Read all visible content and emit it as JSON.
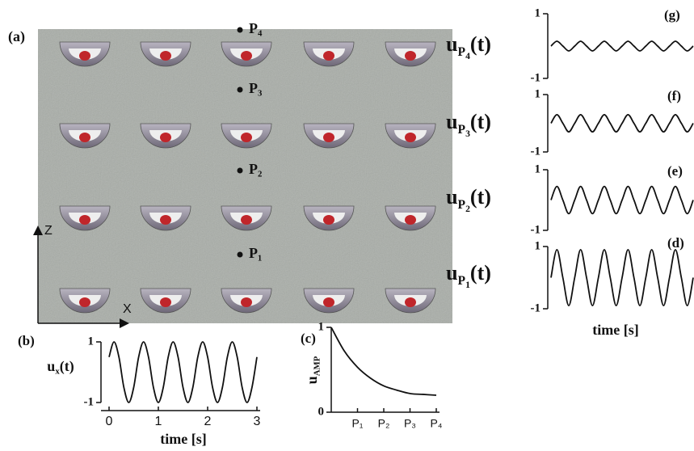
{
  "panel_a": {
    "label": "(a)",
    "points": [
      "P₄",
      "P₃",
      "P₂",
      "P₁"
    ],
    "axes": [
      "Z",
      "X"
    ]
  },
  "chart_data": [
    {
      "type": "line",
      "panel": "(b)",
      "ylabel": {
        "base": "u",
        "sub": "x",
        "tail": "(t)"
      },
      "xlabel": "time [s]",
      "x": [
        0,
        0.1,
        0.2,
        0.3,
        0.4,
        0.5,
        0.6,
        0.7,
        0.8,
        0.9,
        1,
        1.1,
        1.2,
        1.3,
        1.4,
        1.5,
        1.6,
        1.7,
        1.8,
        1.9,
        2,
        2.1,
        2.2,
        2.3,
        2.4,
        2.5,
        2.6,
        2.7,
        2.8,
        2.9,
        3
      ],
      "values": [
        0.5,
        1,
        0.5,
        -0.5,
        -1,
        -0.5,
        0.5,
        1,
        0.5,
        -0.5,
        -1,
        -0.5,
        0.5,
        1,
        0.5,
        -0.5,
        -1,
        -0.5,
        0.5,
        1,
        0.5,
        -0.5,
        -1,
        -0.5,
        0.5,
        1,
        0.5,
        -0.5,
        -1,
        -0.5,
        0.5
      ],
      "color": "#111111",
      "xlim": [
        0,
        3
      ],
      "xticks": [
        0,
        1,
        2,
        3
      ],
      "ylim": [
        -1,
        1
      ],
      "yticks": [
        -1,
        1
      ]
    },
    {
      "type": "line",
      "panel": "(c)",
      "ylabel": {
        "base": "u",
        "sub": "AMP"
      },
      "x": [
        0,
        0.5,
        1,
        1.5,
        2,
        2.5,
        3,
        3.5,
        4
      ],
      "values": [
        1,
        0.72,
        0.53,
        0.4,
        0.31,
        0.26,
        0.22,
        0.21,
        0.2
      ],
      "color": "#111111",
      "xlim": [
        0,
        4
      ],
      "xticks": [
        {
          "value": 1,
          "label": "P₁"
        },
        {
          "value": 2,
          "label": "P₂"
        },
        {
          "value": 3,
          "label": "P₃"
        },
        {
          "value": 4,
          "label": "P₄"
        }
      ],
      "ylim": [
        0,
        1
      ],
      "yticks": [
        0,
        1
      ]
    },
    {
      "type": "line",
      "panel": "(g)",
      "ylabel": {
        "base": "u",
        "sub": "P",
        "subsub": "4",
        "tail": "(t)"
      },
      "x": [
        0,
        0.25,
        0.5,
        0.75,
        1,
        1.25,
        1.5,
        1.75,
        2,
        2.25,
        2.5,
        2.75,
        3,
        3.25,
        3.5,
        3.75,
        4,
        4.25,
        4.5,
        4.75,
        5,
        5.25,
        5.5,
        5.75,
        6
      ],
      "values": [
        0,
        0.15,
        0,
        -0.15,
        0,
        0.15,
        0,
        -0.15,
        0,
        0.15,
        0,
        -0.15,
        0,
        0.15,
        0,
        -0.15,
        0,
        0.15,
        0,
        -0.15,
        0,
        0.15,
        0,
        -0.15,
        0
      ],
      "color": "#111111",
      "xlim": [
        0,
        6
      ],
      "ylim": [
        -1,
        1
      ],
      "yticks": [
        -1,
        1
      ]
    },
    {
      "type": "line",
      "panel": "(f)",
      "ylabel": {
        "base": "u",
        "sub": "P",
        "subsub": "3",
        "tail": "(t)"
      },
      "x": [
        0,
        0.25,
        0.5,
        0.75,
        1,
        1.25,
        1.5,
        1.75,
        2,
        2.25,
        2.5,
        2.75,
        3,
        3.25,
        3.5,
        3.75,
        4,
        4.25,
        4.5,
        4.75,
        5,
        5.25,
        5.5,
        5.75,
        6
      ],
      "values": [
        0,
        0.3,
        0,
        -0.3,
        0,
        0.3,
        0,
        -0.3,
        0,
        0.3,
        0,
        -0.3,
        0,
        0.3,
        0,
        -0.3,
        0,
        0.3,
        0,
        -0.3,
        0,
        0.3,
        0,
        -0.3,
        0
      ],
      "color": "#111111",
      "xlim": [
        0,
        6
      ],
      "ylim": [
        -1,
        1
      ],
      "yticks": [
        -1,
        1
      ]
    },
    {
      "type": "line",
      "panel": "(e)",
      "ylabel": {
        "base": "u",
        "sub": "P",
        "subsub": "2",
        "tail": "(t)"
      },
      "x": [
        0,
        0.25,
        0.5,
        0.75,
        1,
        1.25,
        1.5,
        1.75,
        2,
        2.25,
        2.5,
        2.75,
        3,
        3.25,
        3.5,
        3.75,
        4,
        4.25,
        4.5,
        4.75,
        5,
        5.25,
        5.5,
        5.75,
        6
      ],
      "values": [
        0,
        0.45,
        0,
        -0.45,
        0,
        0.45,
        0,
        -0.45,
        0,
        0.45,
        0,
        -0.45,
        0,
        0.45,
        0,
        -0.45,
        0,
        0.45,
        0,
        -0.45,
        0,
        0.45,
        0,
        -0.45,
        0
      ],
      "color": "#111111",
      "xlim": [
        0,
        6
      ],
      "ylim": [
        -1,
        1
      ],
      "yticks": [
        -1,
        1
      ]
    },
    {
      "type": "line",
      "panel": "(d)",
      "ylabel": {
        "base": "u",
        "sub": "P",
        "subsub": "1",
        "tail": "(t)"
      },
      "xlabel": "time [s]",
      "x": [
        0,
        0.25,
        0.5,
        0.75,
        1,
        1.25,
        1.5,
        1.75,
        2,
        2.25,
        2.5,
        2.75,
        3,
        3.25,
        3.5,
        3.75,
        4,
        4.25,
        4.5,
        4.75,
        5,
        5.25,
        5.5,
        5.75,
        6
      ],
      "values": [
        0,
        0.9,
        0,
        -0.9,
        0,
        0.9,
        0,
        -0.9,
        0,
        0.9,
        0,
        -0.9,
        0,
        0.9,
        0,
        -0.9,
        0,
        0.9,
        0,
        -0.9,
        0,
        0.9,
        0,
        -0.9,
        0
      ],
      "color": "#111111",
      "xlim": [
        0,
        6
      ],
      "ylim": [
        -1,
        1
      ],
      "yticks": [
        -1,
        1
      ]
    }
  ]
}
